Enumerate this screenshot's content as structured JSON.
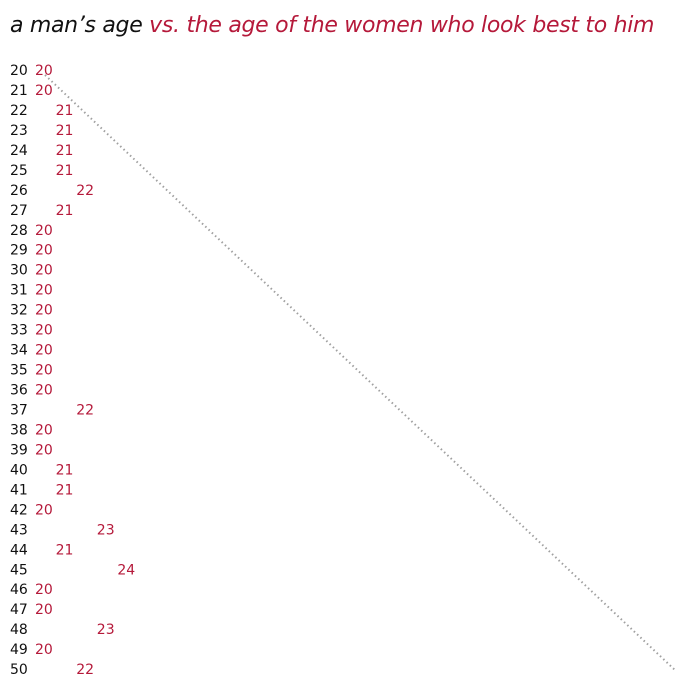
{
  "title": "a man’s age",
  "subtitle": "vs. the age of the women who look best to him",
  "colors": {
    "men": "#111111",
    "women": "#b5193a",
    "reference": "#a0a0a0"
  },
  "chart_data": {
    "type": "scatter",
    "title": "a man’s age",
    "subtitle": "vs. the age of the women who look best to him",
    "x_name": "a man’s age",
    "y_name": "the age of the women who look best to him",
    "x": [
      20,
      21,
      22,
      23,
      24,
      25,
      26,
      27,
      28,
      29,
      30,
      31,
      32,
      33,
      34,
      35,
      36,
      37,
      38,
      39,
      40,
      41,
      42,
      43,
      44,
      45,
      46,
      47,
      48,
      49,
      50
    ],
    "y": [
      20,
      20,
      21,
      21,
      21,
      21,
      22,
      21,
      20,
      20,
      20,
      20,
      20,
      20,
      20,
      20,
      20,
      22,
      20,
      20,
      21,
      21,
      20,
      23,
      21,
      24,
      20,
      20,
      23,
      20,
      22
    ],
    "reference_line": "y = x (dotted diagonal)",
    "grid": false,
    "legend": "none"
  }
}
